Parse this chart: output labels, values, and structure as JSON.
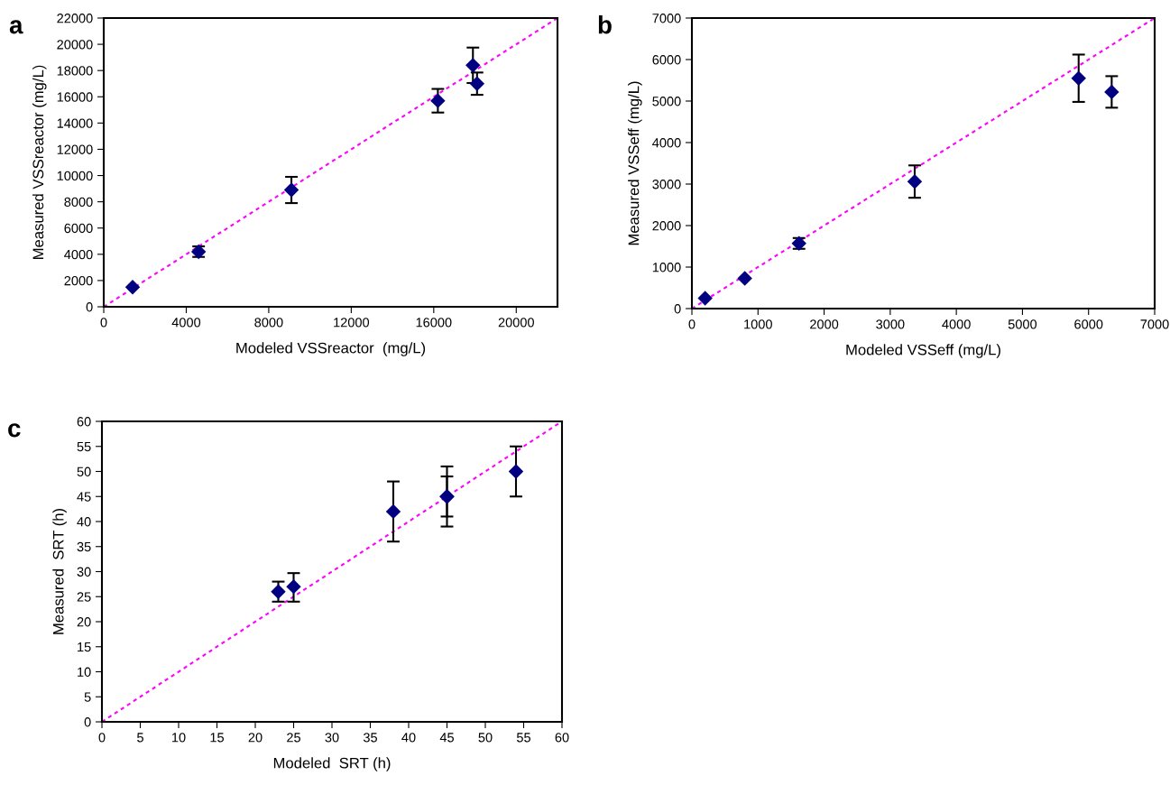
{
  "chart_data": [
    {
      "type": "scatter",
      "title": "a",
      "xlabel": "Modeled VSSreactor  (mg/L)",
      "ylabel": "Measured VSSreactor (mg/L)",
      "xlim": [
        0,
        22000
      ],
      "ylim": [
        0,
        22000
      ],
      "xticks": [
        0,
        4000,
        8000,
        12000,
        16000,
        20000
      ],
      "yticks": [
        0,
        2000,
        4000,
        6000,
        8000,
        10000,
        12000,
        14000,
        16000,
        18000,
        20000,
        22000
      ],
      "grid": false,
      "legend": false,
      "series": [
        {
          "type": "scatter",
          "color": "#000080",
          "marker": "diamond",
          "x": [
            1400,
            4600,
            9100,
            16200,
            17900,
            18100
          ],
          "values": [
            1500,
            4200,
            8900,
            15700,
            18400,
            17000
          ],
          "errors": [
            null,
            400,
            1000,
            900,
            1350,
            850
          ]
        },
        {
          "type": "line",
          "color": "#ff00ff",
          "line_style": "dotted",
          "marker": "none",
          "x": [
            0,
            22000
          ],
          "values": [
            0,
            22000
          ]
        }
      ]
    },
    {
      "type": "scatter",
      "title": "b",
      "xlabel": "Modeled VSSeff (mg/L)",
      "ylabel": "Measured VSSeff (mg/L)",
      "xlim": [
        0,
        7000
      ],
      "ylim": [
        0,
        7000
      ],
      "xticks": [
        0,
        1000,
        2000,
        3000,
        4000,
        5000,
        6000,
        7000
      ],
      "yticks": [
        0,
        1000,
        2000,
        3000,
        4000,
        5000,
        6000,
        7000
      ],
      "grid": false,
      "legend": false,
      "series": [
        {
          "type": "scatter",
          "color": "#000080",
          "marker": "diamond",
          "x": [
            200,
            800,
            1620,
            3370,
            5850,
            6350
          ],
          "values": [
            250,
            730,
            1570,
            3060,
            5550,
            5220
          ],
          "errors": [
            null,
            null,
            130,
            390,
            570,
            380
          ]
        },
        {
          "type": "line",
          "color": "#ff00ff",
          "line_style": "dotted",
          "marker": "none",
          "x": [
            0,
            7000
          ],
          "values": [
            0,
            7000
          ]
        }
      ]
    },
    {
      "type": "scatter",
      "title": "c",
      "xlabel": "Modeled  SRT (h)",
      "ylabel": "Measured  SRT (h)",
      "xlim": [
        0,
        60
      ],
      "ylim": [
        0,
        60
      ],
      "xticks": [
        0,
        5,
        10,
        15,
        20,
        25,
        30,
        35,
        40,
        45,
        50,
        55,
        60
      ],
      "yticks": [
        0,
        5,
        10,
        15,
        20,
        25,
        30,
        35,
        40,
        45,
        50,
        55,
        60
      ],
      "grid": false,
      "legend": false,
      "series": [
        {
          "type": "scatter",
          "color": "#000080",
          "marker": "diamond",
          "x": [
            23,
            25,
            38,
            45,
            45,
            54
          ],
          "values": [
            26,
            27,
            42,
            45,
            45,
            50
          ],
          "errors": [
            2,
            [
              24,
              29.7
            ],
            6,
            4,
            6,
            5
          ]
        },
        {
          "type": "line",
          "color": "#ff00ff",
          "line_style": "dotted",
          "marker": "none",
          "x": [
            0,
            60
          ],
          "values": [
            0,
            60
          ]
        }
      ]
    }
  ]
}
